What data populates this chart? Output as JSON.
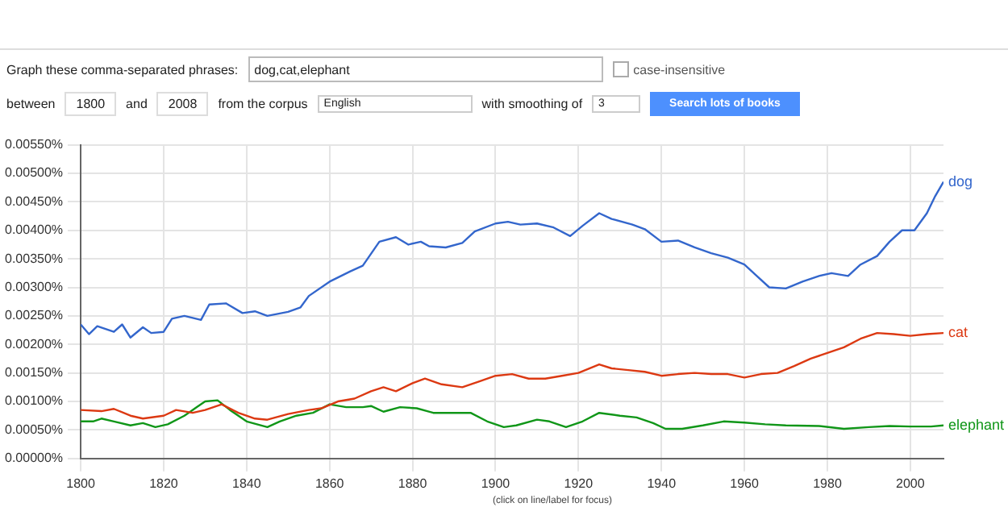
{
  "chart_data": {
    "type": "line",
    "xlim": [
      1800,
      2008
    ],
    "xticks": [
      1800,
      1820,
      1840,
      1860,
      1880,
      1900,
      1920,
      1940,
      1960,
      1980,
      2000
    ],
    "ylim": [
      0,
      0.0055
    ],
    "yticks": [
      {
        "value": 0,
        "label": "0.00000%"
      },
      {
        "value": 0.0005,
        "label": "0.00050%"
      },
      {
        "value": 0.001,
        "label": "0.00100%"
      },
      {
        "value": 0.0015,
        "label": "0.00150%"
      },
      {
        "value": 0.002,
        "label": "0.00200%"
      },
      {
        "value": 0.0025,
        "label": "0.00250%"
      },
      {
        "value": 0.003,
        "label": "0.00300%"
      },
      {
        "value": 0.0035,
        "label": "0.00350%"
      },
      {
        "value": 0.004,
        "label": "0.00400%"
      },
      {
        "value": 0.0045,
        "label": "0.00450%"
      },
      {
        "value": 0.005,
        "label": "0.00500%"
      },
      {
        "value": 0.0055,
        "label": "0.00550%"
      }
    ],
    "grid": true,
    "legend": false,
    "marker": "none",
    "line_style": "solid",
    "series": [
      {
        "name": "dog",
        "color": "#3366cc",
        "x": [
          1800,
          1802,
          1804,
          1808,
          1810,
          1812,
          1815,
          1817,
          1820,
          1822,
          1825,
          1829,
          1831,
          1835,
          1839,
          1842,
          1845,
          1850,
          1853,
          1855,
          1860,
          1865,
          1868,
          1872,
          1876,
          1879,
          1882,
          1884,
          1888,
          1892,
          1895,
          1900,
          1903,
          1906,
          1910,
          1914,
          1918,
          1921,
          1925,
          1928,
          1933,
          1936,
          1940,
          1944,
          1948,
          1952,
          1956,
          1960,
          1963,
          1966,
          1970,
          1974,
          1978,
          1981,
          1985,
          1988,
          1992,
          1995,
          1998,
          2001,
          2004,
          2006,
          2008
        ],
        "values": [
          0.00235,
          0.00218,
          0.00232,
          0.00222,
          0.00235,
          0.00212,
          0.0023,
          0.0022,
          0.00222,
          0.00245,
          0.0025,
          0.00243,
          0.0027,
          0.00272,
          0.00255,
          0.00258,
          0.0025,
          0.00257,
          0.00265,
          0.00285,
          0.0031,
          0.00328,
          0.00338,
          0.0038,
          0.00388,
          0.00375,
          0.0038,
          0.00372,
          0.0037,
          0.00378,
          0.00398,
          0.00412,
          0.00415,
          0.0041,
          0.00412,
          0.00405,
          0.0039,
          0.00408,
          0.0043,
          0.0042,
          0.0041,
          0.00402,
          0.0038,
          0.00382,
          0.0037,
          0.0036,
          0.00352,
          0.0034,
          0.0032,
          0.003,
          0.00298,
          0.0031,
          0.0032,
          0.00325,
          0.0032,
          0.0034,
          0.00355,
          0.0038,
          0.004,
          0.004,
          0.0043,
          0.0046,
          0.00485
        ]
      },
      {
        "name": "cat",
        "color": "#dc3912",
        "x": [
          1800,
          1805,
          1808,
          1812,
          1815,
          1820,
          1823,
          1827,
          1830,
          1834,
          1838,
          1842,
          1845,
          1850,
          1855,
          1858,
          1862,
          1866,
          1870,
          1873,
          1876,
          1880,
          1883,
          1887,
          1892,
          1896,
          1900,
          1904,
          1908,
          1912,
          1916,
          1920,
          1925,
          1928,
          1932,
          1936,
          1940,
          1944,
          1948,
          1952,
          1956,
          1960,
          1964,
          1968,
          1972,
          1976,
          1980,
          1984,
          1988,
          1992,
          1996,
          2000,
          2004,
          2008
        ],
        "values": [
          0.00085,
          0.00083,
          0.00087,
          0.00075,
          0.0007,
          0.00075,
          0.00085,
          0.0008,
          0.00085,
          0.00095,
          0.0008,
          0.0007,
          0.00068,
          0.00078,
          0.00085,
          0.00088,
          0.001,
          0.00105,
          0.00118,
          0.00125,
          0.00118,
          0.00132,
          0.0014,
          0.0013,
          0.00125,
          0.00135,
          0.00145,
          0.00148,
          0.0014,
          0.0014,
          0.00145,
          0.0015,
          0.00165,
          0.00158,
          0.00155,
          0.00152,
          0.00145,
          0.00148,
          0.0015,
          0.00148,
          0.00148,
          0.00142,
          0.00148,
          0.0015,
          0.00162,
          0.00175,
          0.00185,
          0.00195,
          0.0021,
          0.0022,
          0.00218,
          0.00215,
          0.00218,
          0.0022
        ]
      },
      {
        "name": "elephant",
        "color": "#109618",
        "x": [
          1800,
          1803,
          1805,
          1808,
          1812,
          1815,
          1818,
          1821,
          1825,
          1828,
          1830,
          1833,
          1836,
          1840,
          1845,
          1848,
          1852,
          1856,
          1860,
          1864,
          1868,
          1870,
          1873,
          1877,
          1881,
          1885,
          1890,
          1894,
          1898,
          1902,
          1905,
          1910,
          1913,
          1917,
          1921,
          1925,
          1930,
          1934,
          1938,
          1941,
          1945,
          1950,
          1955,
          1960,
          1965,
          1970,
          1978,
          1984,
          1990,
          1995,
          2000,
          2005,
          2008
        ],
        "values": [
          0.00065,
          0.00065,
          0.0007,
          0.00065,
          0.00058,
          0.00062,
          0.00055,
          0.0006,
          0.00075,
          0.0009,
          0.001,
          0.00102,
          0.00085,
          0.00065,
          0.00055,
          0.00065,
          0.00075,
          0.0008,
          0.00095,
          0.0009,
          0.0009,
          0.00092,
          0.00082,
          0.0009,
          0.00088,
          0.0008,
          0.0008,
          0.0008,
          0.00065,
          0.00055,
          0.00058,
          0.00068,
          0.00065,
          0.00055,
          0.00065,
          0.0008,
          0.00075,
          0.00072,
          0.00062,
          0.00052,
          0.00052,
          0.00058,
          0.00065,
          0.00063,
          0.0006,
          0.00058,
          0.00057,
          0.00052,
          0.00055,
          0.00057,
          0.00056,
          0.00056,
          0.00058
        ]
      }
    ],
    "annotations": [
      "Graph these comma-separated phrases:",
      "dog,cat,elephant",
      "case-insensitive",
      "between",
      "1800",
      "and",
      "2008",
      "from the corpus",
      "English",
      "with smoothing of",
      "3",
      "Search lots of books",
      "(click on line/label for focus)"
    ]
  }
}
